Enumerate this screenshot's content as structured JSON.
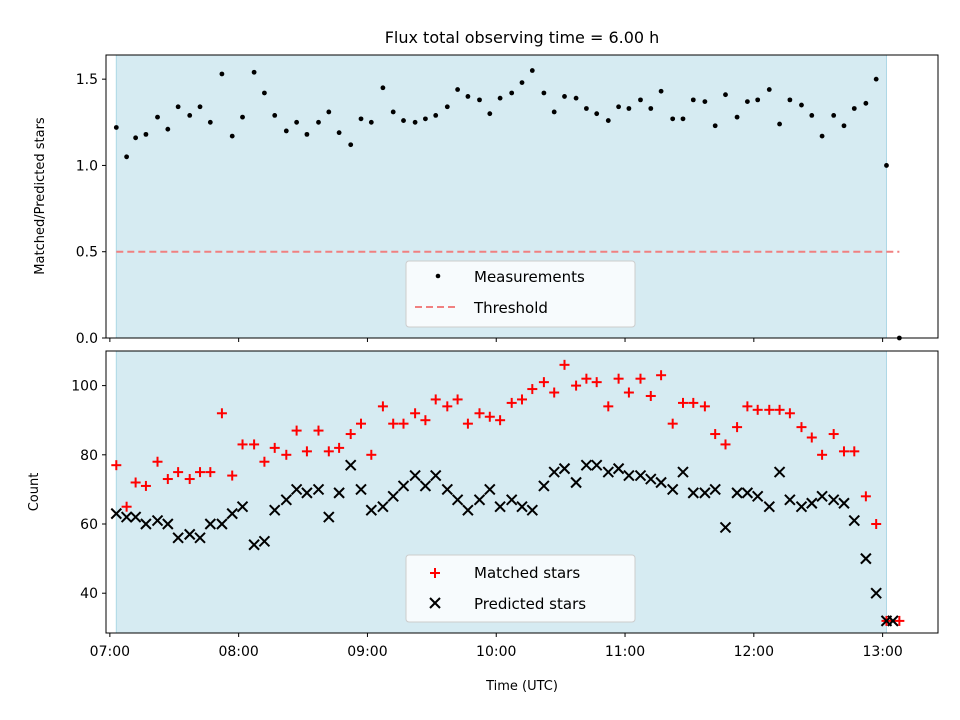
{
  "chart_data": [
    {
      "type": "scatter",
      "title": "Flux total observing time = 6.00 h",
      "ylabel": "Matched/Predicted stars",
      "xlabel": "",
      "xlim": [
        6.97,
        13.43
      ],
      "ylim": [
        0.0,
        1.64
      ],
      "yticks": [
        0.0,
        0.5,
        1.0,
        1.5
      ],
      "ytick_labels": [
        "0.0",
        "0.5",
        "1.0",
        "1.5"
      ],
      "observing_window": [
        7.05,
        13.03
      ],
      "threshold": {
        "name": "Threshold",
        "value": 0.5,
        "x_range": [
          7.05,
          13.13
        ],
        "color": "#f08080"
      },
      "legend": [
        "Measurements",
        "Threshold"
      ],
      "legend_position": "lower-center",
      "series": [
        {
          "name": "Measurements",
          "marker": "dot",
          "color": "#000000",
          "x": [
            7.05,
            7.13,
            7.2,
            7.28,
            7.37,
            7.45,
            7.53,
            7.62,
            7.7,
            7.78,
            7.87,
            7.95,
            8.03,
            8.12,
            8.2,
            8.28,
            8.37,
            8.45,
            8.53,
            8.62,
            8.7,
            8.78,
            8.87,
            8.95,
            9.03,
            9.12,
            9.2,
            9.28,
            9.37,
            9.45,
            9.53,
            9.62,
            9.7,
            9.78,
            9.87,
            9.95,
            10.03,
            10.12,
            10.2,
            10.28,
            10.37,
            10.45,
            10.53,
            10.62,
            10.7,
            10.78,
            10.87,
            10.95,
            11.03,
            11.12,
            11.2,
            11.28,
            11.37,
            11.45,
            11.53,
            11.62,
            11.7,
            11.78,
            11.87,
            11.95,
            12.03,
            12.12,
            12.2,
            12.28,
            12.37,
            12.45,
            12.53,
            12.62,
            12.7,
            12.78,
            12.87,
            12.95,
            13.03,
            13.13
          ],
          "y": [
            1.22,
            1.05,
            1.16,
            1.18,
            1.28,
            1.21,
            1.34,
            1.29,
            1.34,
            1.25,
            1.53,
            1.17,
            1.28,
            1.54,
            1.42,
            1.29,
            1.2,
            1.25,
            1.18,
            1.25,
            1.31,
            1.19,
            1.12,
            1.27,
            1.25,
            1.45,
            1.31,
            1.26,
            1.25,
            1.27,
            1.29,
            1.34,
            1.44,
            1.4,
            1.38,
            1.3,
            1.39,
            1.42,
            1.48,
            1.55,
            1.42,
            1.31,
            1.4,
            1.39,
            1.33,
            1.3,
            1.26,
            1.34,
            1.33,
            1.38,
            1.33,
            1.43,
            1.27,
            1.27,
            1.38,
            1.37,
            1.23,
            1.41,
            1.28,
            1.37,
            1.38,
            1.44,
            1.24,
            1.38,
            1.35,
            1.29,
            1.17,
            1.29,
            1.23,
            1.33,
            1.36,
            1.5,
            1.0,
            0.0
          ]
        }
      ]
    },
    {
      "type": "scatter",
      "title": "",
      "xlabel": "Time (UTC)",
      "ylabel": "Count",
      "xlim": [
        6.97,
        13.43
      ],
      "ylim": [
        28.5,
        110
      ],
      "xticks": [
        7,
        8,
        9,
        10,
        11,
        12,
        13
      ],
      "xtick_labels": [
        "07:00",
        "08:00",
        "09:00",
        "10:00",
        "11:00",
        "12:00",
        "13:00"
      ],
      "yticks": [
        40,
        60,
        80,
        100
      ],
      "ytick_labels": [
        "40",
        "60",
        "80",
        "100"
      ],
      "observing_window": [
        7.05,
        13.03
      ],
      "legend": [
        "Matched stars",
        "Predicted stars"
      ],
      "legend_position": "lower-center",
      "series": [
        {
          "name": "Matched stars",
          "marker": "plus",
          "color": "#ff0000",
          "x": [
            7.05,
            7.13,
            7.2,
            7.28,
            7.37,
            7.45,
            7.53,
            7.62,
            7.7,
            7.78,
            7.87,
            7.95,
            8.03,
            8.12,
            8.2,
            8.28,
            8.37,
            8.45,
            8.53,
            8.62,
            8.7,
            8.78,
            8.87,
            8.95,
            9.03,
            9.12,
            9.2,
            9.28,
            9.37,
            9.45,
            9.53,
            9.62,
            9.7,
            9.78,
            9.87,
            9.95,
            10.03,
            10.12,
            10.2,
            10.28,
            10.37,
            10.45,
            10.53,
            10.62,
            10.7,
            10.78,
            10.87,
            10.95,
            11.03,
            11.12,
            11.2,
            11.28,
            11.37,
            11.45,
            11.53,
            11.62,
            11.7,
            11.78,
            11.87,
            11.95,
            12.03,
            12.12,
            12.2,
            12.28,
            12.37,
            12.45,
            12.53,
            12.62,
            12.7,
            12.78,
            12.87,
            12.95,
            13.03,
            13.13
          ],
          "y": [
            77,
            65,
            72,
            71,
            78,
            73,
            75,
            73,
            75,
            75,
            92,
            74,
            83,
            83,
            78,
            82,
            80,
            87,
            81,
            87,
            81,
            82,
            86,
            89,
            80,
            94,
            89,
            89,
            92,
            90,
            96,
            94,
            96,
            89,
            92,
            91,
            90,
            95,
            96,
            99,
            101,
            98,
            106,
            100,
            102,
            101,
            94,
            102,
            98,
            102,
            97,
            103,
            89,
            95,
            95,
            94,
            86,
            83,
            88,
            94,
            93,
            93,
            93,
            92,
            88,
            85,
            80,
            86,
            81,
            81,
            68,
            60,
            32,
            32
          ]
        },
        {
          "name": "Predicted stars",
          "marker": "x",
          "color": "#000000",
          "x": [
            7.05,
            7.13,
            7.2,
            7.28,
            7.37,
            7.45,
            7.53,
            7.62,
            7.7,
            7.78,
            7.87,
            7.95,
            8.03,
            8.12,
            8.2,
            8.28,
            8.37,
            8.45,
            8.53,
            8.62,
            8.7,
            8.78,
            8.87,
            8.95,
            9.03,
            9.12,
            9.2,
            9.28,
            9.37,
            9.45,
            9.53,
            9.62,
            9.7,
            9.78,
            9.87,
            9.95,
            10.03,
            10.12,
            10.2,
            10.28,
            10.37,
            10.45,
            10.53,
            10.62,
            10.7,
            10.78,
            10.87,
            10.95,
            11.03,
            11.12,
            11.2,
            11.28,
            11.37,
            11.45,
            11.53,
            11.62,
            11.7,
            11.78,
            11.87,
            11.95,
            12.03,
            12.12,
            12.2,
            12.28,
            12.37,
            12.45,
            12.53,
            12.62,
            12.7,
            12.78,
            12.87,
            12.95,
            13.03,
            13.08
          ],
          "y": [
            63,
            62,
            62,
            60,
            61,
            60,
            56,
            57,
            56,
            60,
            60,
            63,
            65,
            54,
            55,
            64,
            67,
            70,
            69,
            70,
            62,
            69,
            77,
            70,
            64,
            65,
            68,
            71,
            74,
            71,
            74,
            70,
            67,
            64,
            67,
            70,
            65,
            67,
            65,
            64,
            71,
            75,
            76,
            72,
            77,
            77,
            75,
            76,
            74,
            74,
            73,
            72,
            70,
            75,
            69,
            69,
            70,
            59,
            69,
            69,
            68,
            65,
            75,
            67,
            65,
            66,
            68,
            67,
            66,
            61,
            50,
            40,
            32,
            32
          ]
        }
      ]
    }
  ]
}
